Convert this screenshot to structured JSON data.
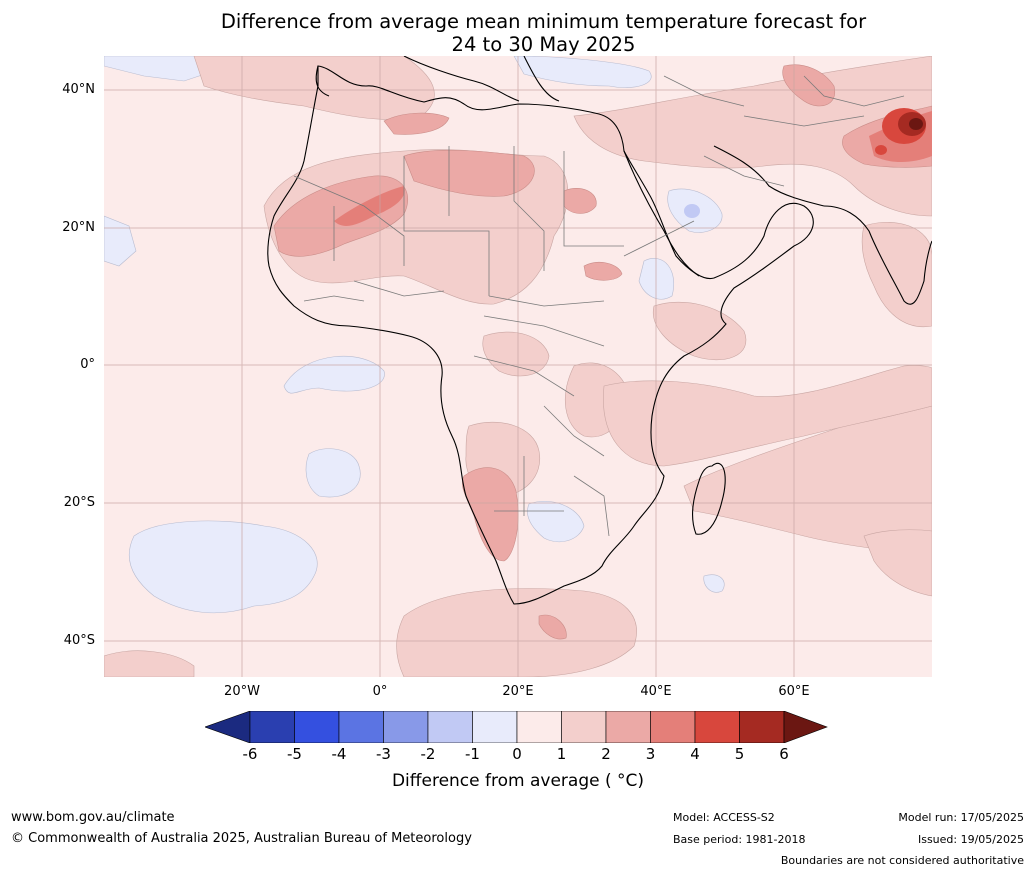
{
  "title": {
    "line1": "Difference from average mean minimum temperature forecast for",
    "line2": "24 to 30 May 2025"
  },
  "map": {
    "lat_labels": [
      "40°N",
      "20°N",
      "0°",
      "20°S",
      "40°S"
    ],
    "lon_labels": [
      "20°W",
      "0°",
      "20°E",
      "40°E",
      "60°E"
    ]
  },
  "colorbar": {
    "ticks": [
      "-6",
      "-5",
      "-4",
      "-3",
      "-2",
      "-1",
      "0",
      "1",
      "2",
      "3",
      "4",
      "5",
      "6"
    ],
    "colors": [
      "#1b2a80",
      "#2a3fb0",
      "#3450e0",
      "#5b74e3",
      "#8899e8",
      "#c1c9f4",
      "#e8ebfb",
      "#fcebea",
      "#f3cfcc",
      "#eba9a6",
      "#e47f79",
      "#d8473d",
      "#a52a22",
      "#6b1712"
    ],
    "label": "Difference from average ( °C)"
  },
  "footer": {
    "website": "www.bom.gov.au/climate",
    "copyright": "© Commonwealth of Australia 2025, Australian Bureau of Meteorology",
    "model": "Model: ACCESS-S2",
    "base_period": "Base period: 1981-2018",
    "model_run": "Model run: 17/05/2025",
    "issued": "Issued: 19/05/2025",
    "disclaimer": "Boundaries are not considered authoritative"
  }
}
